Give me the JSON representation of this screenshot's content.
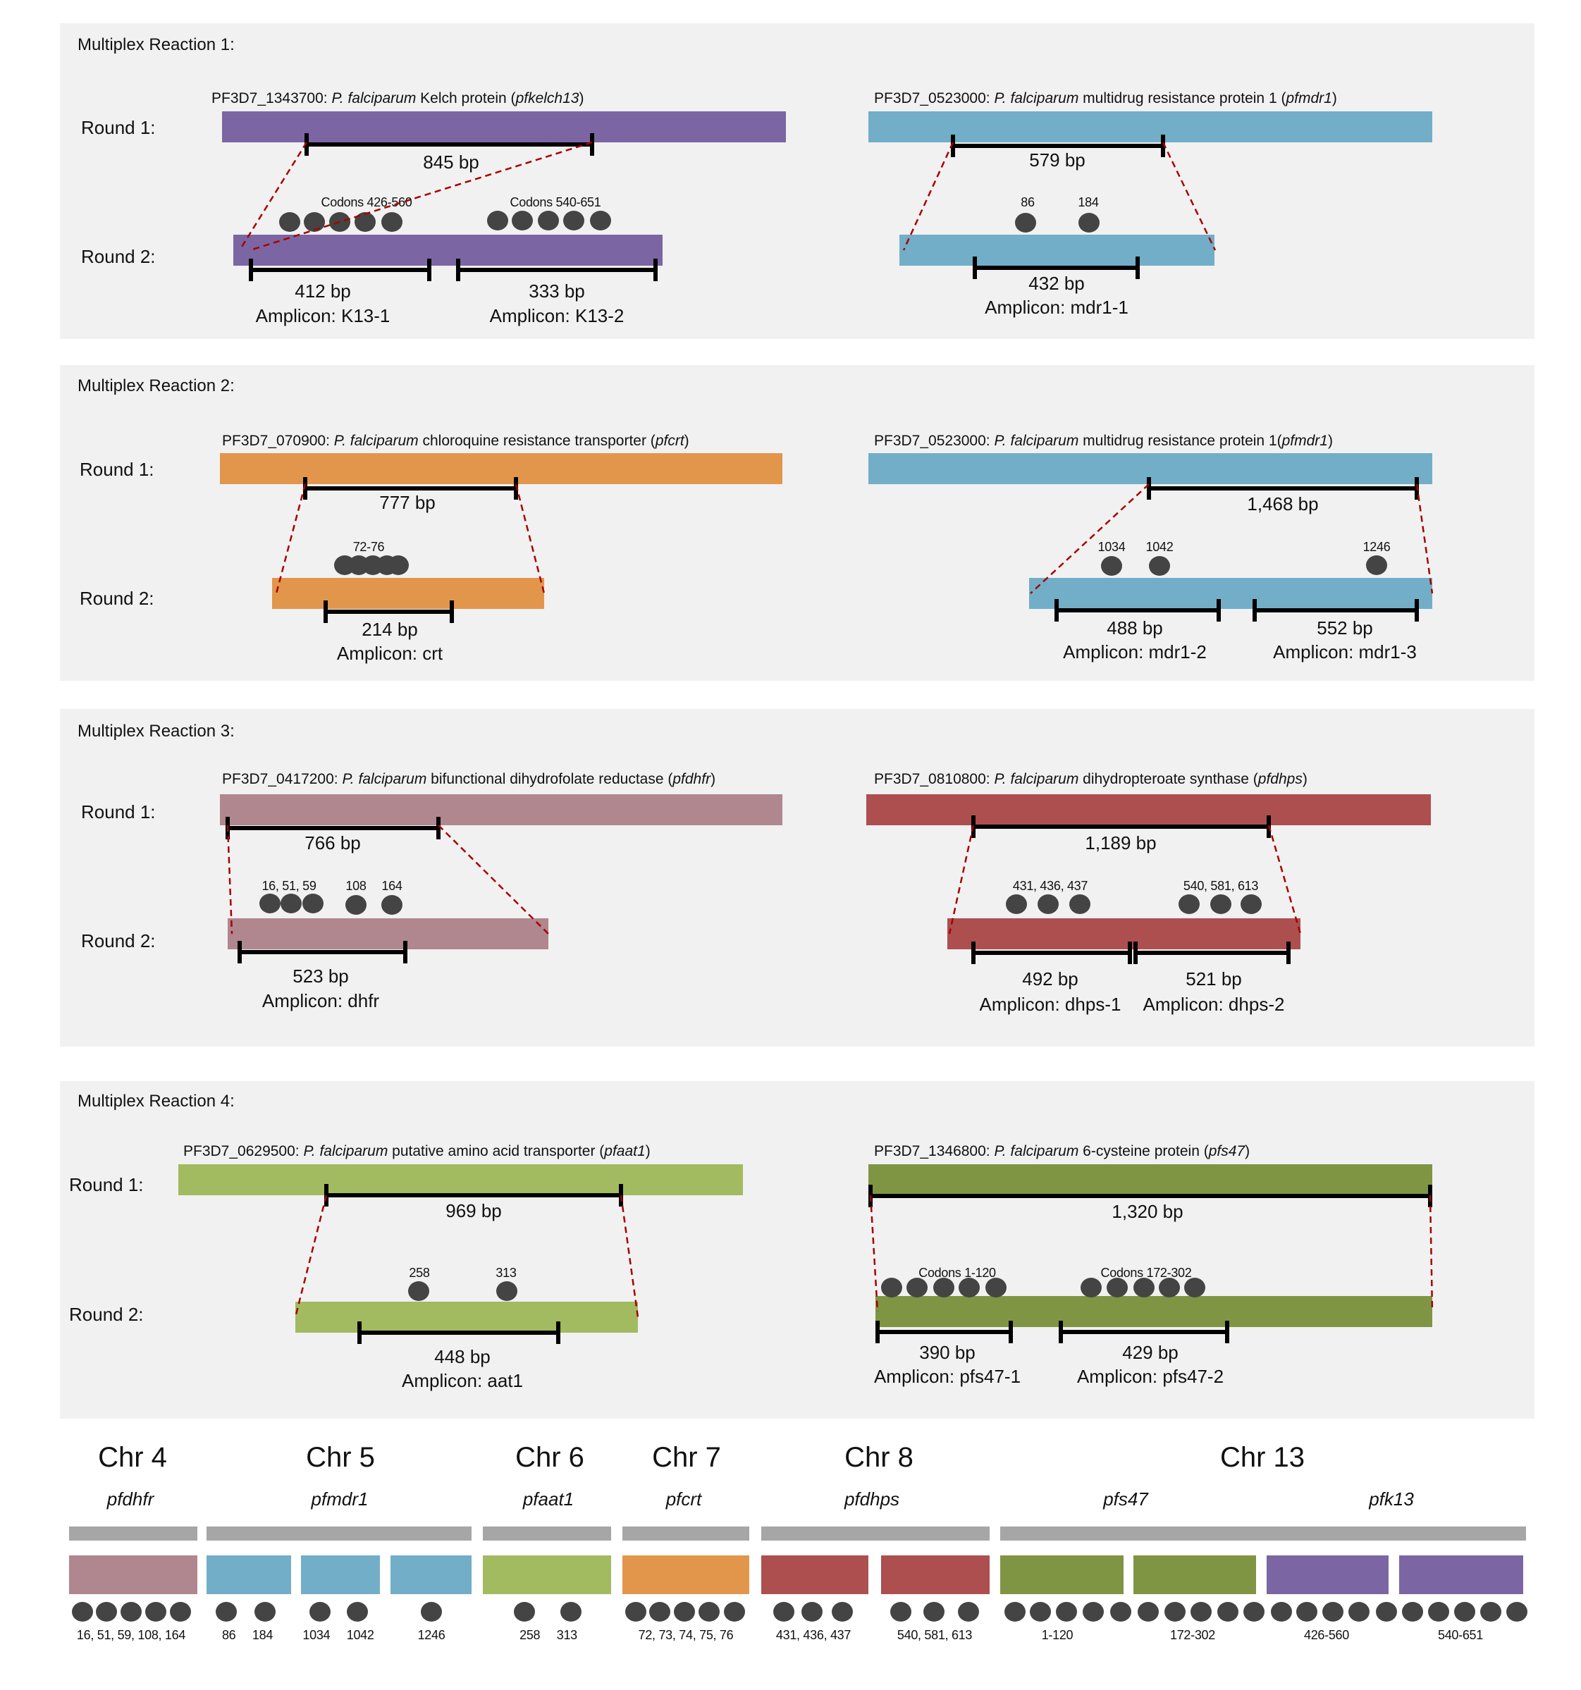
{
  "colors": {
    "kelch13": "#7b66a3",
    "mdr1": "#72aec8",
    "crt": "#e2964b",
    "dhfr": "#b0868f",
    "dhps": "#ad4f4f",
    "aat1": "#a2bb60",
    "pfs47": "#7f9543",
    "dot": "#444444",
    "connector": "#a80000",
    "panel": "#f1f1f1",
    "chrom_bar": "#a6a6a6"
  },
  "panels": [
    {
      "title": "Multiplex Reaction 1:",
      "round1": "Round 1:",
      "round2": "Round 2:",
      "genes": [
        {
          "id_prefix": "PF3D7_1343700: ",
          "species": "P. falciparum",
          "desc": " Kelch protein (",
          "sym": "pfkelch13",
          "suffix": ")",
          "color": "kelch13",
          "r1_bp": "845 bp",
          "codon_groups": [
            {
              "label": "Codons 426-560",
              "count": 5
            },
            {
              "label": "Codons 540-651",
              "count": 5
            }
          ],
          "amplicons": [
            {
              "bp": "412 bp",
              "name": "Amplicon: K13-1"
            },
            {
              "bp": "333 bp",
              "name": "Amplicon: K13-2"
            }
          ]
        },
        {
          "id_prefix": "PF3D7_0523000: ",
          "species": "P. falciparum",
          "desc": " multidrug resistance protein 1 (",
          "sym": "pfmdr1",
          "suffix": ")",
          "color": "mdr1",
          "r1_bp": "579 bp",
          "codon_groups": [
            {
              "label": "86",
              "count": 1
            },
            {
              "label": "184",
              "count": 1
            }
          ],
          "amplicons": [
            {
              "bp": "432 bp",
              "name": "Amplicon: mdr1-1"
            }
          ]
        }
      ]
    },
    {
      "title": "Multiplex Reaction 2:",
      "round1": "Round 1:",
      "round2": "Round 2:",
      "genes": [
        {
          "id_prefix": "PF3D7_070900: ",
          "species": "P. falciparum",
          "desc": " chloroquine resistance transporter (",
          "sym": "pfcrt",
          "suffix": ")",
          "color": "crt",
          "r1_bp": "777 bp",
          "codon_groups": [
            {
              "label": "72-76",
              "count": 5
            }
          ],
          "amplicons": [
            {
              "bp": "214 bp",
              "name": "Amplicon: crt"
            }
          ]
        },
        {
          "id_prefix": "PF3D7_0523000: ",
          "species": "P. falciparum",
          "desc": " multidrug resistance protein 1(",
          "sym": "pfmdr1",
          "suffix": ")",
          "color": "mdr1",
          "r1_bp": "1,468 bp",
          "codon_groups": [
            {
              "label": "1034",
              "count": 1
            },
            {
              "label": "1042",
              "count": 1
            },
            {
              "label": "1246",
              "count": 1
            }
          ],
          "amplicons": [
            {
              "bp": "488 bp",
              "name": "Amplicon: mdr1-2"
            },
            {
              "bp": "552 bp",
              "name": "Amplicon: mdr1-3"
            }
          ]
        }
      ]
    },
    {
      "title": "Multiplex Reaction 3:",
      "round1": "Round 1:",
      "round2": "Round 2:",
      "genes": [
        {
          "id_prefix": "PF3D7_0417200: ",
          "species": "P. falciparum",
          "desc": " bifunctional dihydrofolate reductase (",
          "sym": "pfdhfr",
          "suffix": ")",
          "color": "dhfr",
          "r1_bp": "766 bp",
          "codon_groups": [
            {
              "label": "16, 51, 59",
              "count": 3
            },
            {
              "label": "108",
              "count": 1
            },
            {
              "label": "164",
              "count": 1
            }
          ],
          "amplicons": [
            {
              "bp": "523 bp",
              "name": "Amplicon: dhfr"
            }
          ]
        },
        {
          "id_prefix": "PF3D7_0810800: ",
          "species": "P. falciparum",
          "desc": " dihydropteroate synthase (",
          "sym": "pfdhps",
          "suffix": ")",
          "color": "dhps",
          "r1_bp": "1,189 bp",
          "codon_groups": [
            {
              "label": "431, 436, 437",
              "count": 3
            },
            {
              "label": "540, 581, 613",
              "count": 3
            }
          ],
          "amplicons": [
            {
              "bp": "492 bp",
              "name": "Amplicon: dhps-1"
            },
            {
              "bp": "521 bp",
              "name": "Amplicon: dhps-2"
            }
          ]
        }
      ]
    },
    {
      "title": "Multiplex Reaction 4:",
      "round1": "Round 1:",
      "round2": "Round 2:",
      "genes": [
        {
          "id_prefix": "PF3D7_0629500: ",
          "species": "P. falciparum",
          "desc": " putative amino acid transporter (",
          "sym": "pfaat1",
          "suffix": ")",
          "color": "aat1",
          "r1_bp": "969 bp",
          "codon_groups": [
            {
              "label": "258",
              "count": 1
            },
            {
              "label": "313",
              "count": 1
            }
          ],
          "amplicons": [
            {
              "bp": "448 bp",
              "name": "Amplicon: aat1"
            }
          ]
        },
        {
          "id_prefix": "PF3D7_1346800: ",
          "species": "P. falciparum",
          "desc": " 6-cysteine protein (",
          "sym": "pfs47",
          "suffix": ")",
          "color": "pfs47",
          "r1_bp": "1,320 bp",
          "codon_groups": [
            {
              "label": "Codons 1-120",
              "count": 5
            },
            {
              "label": "Codons 172-302",
              "count": 5
            }
          ],
          "amplicons": [
            {
              "bp": "390 bp",
              "name": "Amplicon: pfs47-1"
            },
            {
              "bp": "429 bp",
              "name": "Amplicon: pfs47-2"
            }
          ]
        }
      ]
    }
  ],
  "chromosomes": [
    {
      "chr": "Chr 4",
      "gene": "pfdhfr",
      "blocks": [
        {
          "color": "dhfr",
          "label": "16, 51, 59, 108, 164",
          "dots": 5
        }
      ]
    },
    {
      "chr": "Chr 5",
      "gene": "pfmdr1",
      "blocks": [
        {
          "color": "mdr1",
          "label": "86     184",
          "dots": 2
        },
        {
          "color": "mdr1",
          "label": "1034     1042",
          "dots": 2
        },
        {
          "color": "mdr1",
          "label": "1246",
          "dots": 1
        }
      ]
    },
    {
      "chr": "Chr 6",
      "gene": "pfaat1",
      "blocks": [
        {
          "color": "aat1",
          "label": "258     313",
          "dots": 2
        }
      ]
    },
    {
      "chr": "Chr 7",
      "gene": "pfcrt",
      "blocks": [
        {
          "color": "crt",
          "label": "72, 73, 74, 75, 76",
          "dots": 5
        }
      ]
    },
    {
      "chr": "Chr 8",
      "gene": "pfdhps",
      "blocks": [
        {
          "color": "dhps",
          "label": "431, 436, 437",
          "dots": 3
        },
        {
          "color": "dhps",
          "label": "540, 581, 613",
          "dots": 3
        }
      ]
    },
    {
      "chr": "Chr 13",
      "gene": "pfs47",
      "blocks": [
        {
          "color": "pfs47",
          "label": "1-120",
          "dots": 5
        },
        {
          "color": "pfs47",
          "label": "172-302",
          "dots": 5
        }
      ]
    },
    {
      "chr": "",
      "gene": "pfk13",
      "blocks": [
        {
          "color": "kelch13",
          "label": "426-560",
          "dots": 5
        },
        {
          "color": "kelch13",
          "label": "540-651",
          "dots": 5
        }
      ]
    }
  ]
}
